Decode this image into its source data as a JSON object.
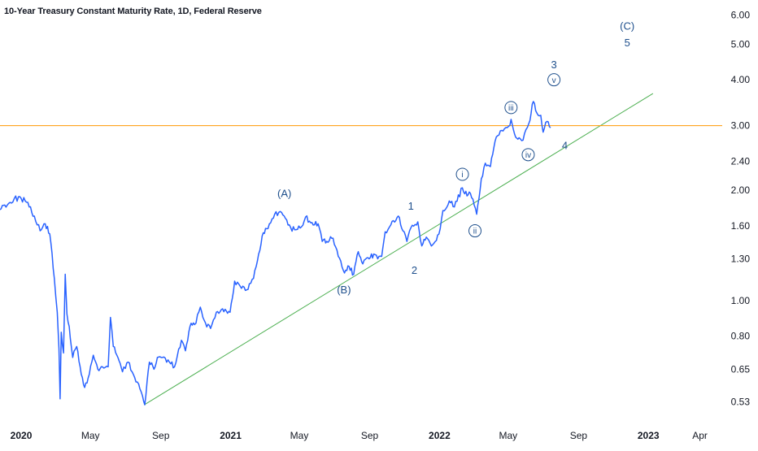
{
  "chart_data": {
    "type": "line",
    "title": "10-Year Treasury Constant Maturity Rate, 1D, Federal Reserve",
    "y_scale": "log",
    "ylim": [
      0.47,
      6.6
    ],
    "y_ticks": [
      "6.00",
      "5.00",
      "4.00",
      "3.00",
      "2.40",
      "2.00",
      "1.60",
      "1.30",
      "1.00",
      "0.80",
      "0.65",
      "0.53"
    ],
    "x_ticks": [
      {
        "date": "2020-01-01",
        "label": "2020",
        "bold": true
      },
      {
        "date": "2020-05-01",
        "label": "May",
        "bold": false
      },
      {
        "date": "2020-09-01",
        "label": "Sep",
        "bold": false
      },
      {
        "date": "2021-01-01",
        "label": "2021",
        "bold": true
      },
      {
        "date": "2021-05-01",
        "label": "May",
        "bold": false
      },
      {
        "date": "2021-09-01",
        "label": "Sep",
        "bold": false
      },
      {
        "date": "2022-01-01",
        "label": "2022",
        "bold": true
      },
      {
        "date": "2022-05-01",
        "label": "May",
        "bold": false
      },
      {
        "date": "2022-09-01",
        "label": "Sep",
        "bold": false
      },
      {
        "date": "2023-01-01",
        "label": "2023",
        "bold": true
      },
      {
        "date": "2023-04-01",
        "label": "Apr",
        "bold": false
      }
    ],
    "xlim": [
      "2019-11-25",
      "2023-05-10"
    ],
    "series": [
      {
        "color": "#2962ff",
        "points": [
          [
            "2019-11-25",
            1.77
          ],
          [
            "2019-12-01",
            1.82
          ],
          [
            "2019-12-10",
            1.84
          ],
          [
            "2019-12-20",
            1.9
          ],
          [
            "2020-01-01",
            1.9
          ],
          [
            "2020-01-08",
            1.87
          ],
          [
            "2020-01-15",
            1.8
          ],
          [
            "2020-01-24",
            1.7
          ],
          [
            "2020-02-03",
            1.55
          ],
          [
            "2020-02-12",
            1.62
          ],
          [
            "2020-02-20",
            1.52
          ],
          [
            "2020-02-28",
            1.15
          ],
          [
            "2020-03-04",
            0.93
          ],
          [
            "2020-03-07",
            0.74
          ],
          [
            "2020-03-09",
            0.54
          ],
          [
            "2020-03-11",
            0.82
          ],
          [
            "2020-03-15",
            0.72
          ],
          [
            "2020-03-18",
            1.18
          ],
          [
            "2020-03-21",
            0.92
          ],
          [
            "2020-03-25",
            0.85
          ],
          [
            "2020-03-31",
            0.7
          ],
          [
            "2020-04-07",
            0.75
          ],
          [
            "2020-04-15",
            0.63
          ],
          [
            "2020-04-21",
            0.58
          ],
          [
            "2020-04-29",
            0.63
          ],
          [
            "2020-05-06",
            0.71
          ],
          [
            "2020-05-14",
            0.65
          ],
          [
            "2020-05-22",
            0.66
          ],
          [
            "2020-06-01",
            0.66
          ],
          [
            "2020-06-05",
            0.9
          ],
          [
            "2020-06-10",
            0.75
          ],
          [
            "2020-06-18",
            0.7
          ],
          [
            "2020-06-26",
            0.64
          ],
          [
            "2020-07-06",
            0.68
          ],
          [
            "2020-07-15",
            0.63
          ],
          [
            "2020-07-22",
            0.6
          ],
          [
            "2020-07-31",
            0.55
          ],
          [
            "2020-08-04",
            0.52
          ],
          [
            "2020-08-12",
            0.68
          ],
          [
            "2020-08-20",
            0.65
          ],
          [
            "2020-08-26",
            0.7
          ],
          [
            "2020-09-04",
            0.7
          ],
          [
            "2020-09-16",
            0.68
          ],
          [
            "2020-09-25",
            0.66
          ],
          [
            "2020-10-07",
            0.78
          ],
          [
            "2020-10-14",
            0.73
          ],
          [
            "2020-10-22",
            0.85
          ],
          [
            "2020-10-30",
            0.86
          ],
          [
            "2020-11-09",
            0.96
          ],
          [
            "2020-11-18",
            0.87
          ],
          [
            "2020-11-27",
            0.84
          ],
          [
            "2020-12-07",
            0.93
          ],
          [
            "2020-12-18",
            0.95
          ],
          [
            "2020-12-31",
            0.93
          ],
          [
            "2021-01-08",
            1.13
          ],
          [
            "2021-01-20",
            1.08
          ],
          [
            "2021-01-29",
            1.07
          ],
          [
            "2021-02-10",
            1.15
          ],
          [
            "2021-02-19",
            1.34
          ],
          [
            "2021-02-25",
            1.5
          ],
          [
            "2021-03-05",
            1.57
          ],
          [
            "2021-03-12",
            1.63
          ],
          [
            "2021-03-19",
            1.72
          ],
          [
            "2021-03-31",
            1.74
          ],
          [
            "2021-04-09",
            1.66
          ],
          [
            "2021-04-16",
            1.58
          ],
          [
            "2021-04-23",
            1.56
          ],
          [
            "2021-05-05",
            1.59
          ],
          [
            "2021-05-12",
            1.69
          ],
          [
            "2021-05-21",
            1.63
          ],
          [
            "2021-06-03",
            1.62
          ],
          [
            "2021-06-10",
            1.45
          ],
          [
            "2021-06-18",
            1.45
          ],
          [
            "2021-06-29",
            1.48
          ],
          [
            "2021-07-08",
            1.32
          ],
          [
            "2021-07-19",
            1.19
          ],
          [
            "2021-07-27",
            1.24
          ],
          [
            "2021-08-04",
            1.18
          ],
          [
            "2021-08-12",
            1.36
          ],
          [
            "2021-08-20",
            1.26
          ],
          [
            "2021-08-31",
            1.3
          ],
          [
            "2021-09-08",
            1.34
          ],
          [
            "2021-09-15",
            1.3
          ],
          [
            "2021-09-22",
            1.32
          ],
          [
            "2021-09-28",
            1.54
          ],
          [
            "2021-10-08",
            1.61
          ],
          [
            "2021-10-21",
            1.7
          ],
          [
            "2021-10-29",
            1.55
          ],
          [
            "2021-11-05",
            1.45
          ],
          [
            "2021-11-12",
            1.58
          ],
          [
            "2021-11-24",
            1.64
          ],
          [
            "2021-12-01",
            1.41
          ],
          [
            "2021-12-09",
            1.49
          ],
          [
            "2021-12-20",
            1.42
          ],
          [
            "2021-12-31",
            1.52
          ],
          [
            "2022-01-07",
            1.76
          ],
          [
            "2022-01-18",
            1.87
          ],
          [
            "2022-01-27",
            1.8
          ],
          [
            "2022-02-10",
            2.03
          ],
          [
            "2022-02-18",
            1.93
          ],
          [
            "2022-02-24",
            1.96
          ],
          [
            "2022-03-07",
            1.72
          ],
          [
            "2022-03-15",
            2.15
          ],
          [
            "2022-03-22",
            2.37
          ],
          [
            "2022-03-31",
            2.32
          ],
          [
            "2022-04-08",
            2.72
          ],
          [
            "2022-04-15",
            2.83
          ],
          [
            "2022-04-22",
            2.9
          ],
          [
            "2022-05-02",
            2.99
          ],
          [
            "2022-05-06",
            3.12
          ],
          [
            "2022-05-12",
            2.85
          ],
          [
            "2022-05-20",
            2.78
          ],
          [
            "2022-05-27",
            2.74
          ],
          [
            "2022-06-06",
            3.04
          ],
          [
            "2022-06-14",
            3.49
          ],
          [
            "2022-06-20",
            3.25
          ],
          [
            "2022-06-27",
            3.2
          ],
          [
            "2022-07-01",
            2.88
          ],
          [
            "2022-07-08",
            3.08
          ],
          [
            "2022-07-14",
            2.96
          ]
        ]
      }
    ],
    "horizontal_lines": [
      {
        "y": 3.0,
        "color": "#ff9800"
      }
    ],
    "trendlines": [
      {
        "from": [
          "2020-08-03",
          0.52
        ],
        "to": [
          "2023-01-09",
          3.67
        ],
        "color": "#4caf50"
      }
    ],
    "annotations": [
      {
        "text": "(C)",
        "date": "2022-11-25",
        "y": 5.6,
        "circled": false
      },
      {
        "text": "5",
        "date": "2022-11-25",
        "y": 5.05,
        "circled": false
      },
      {
        "text": "3",
        "date": "2022-07-20",
        "y": 4.4,
        "circled": false
      },
      {
        "text": "v",
        "date": "2022-07-20",
        "y": 4.0,
        "circled": true
      },
      {
        "text": "iii",
        "date": "2022-05-06",
        "y": 3.36,
        "circled": true
      },
      {
        "text": "4",
        "date": "2022-08-08",
        "y": 2.65,
        "circled": false
      },
      {
        "text": "iv",
        "date": "2022-06-05",
        "y": 2.5,
        "circled": true
      },
      {
        "text": "i",
        "date": "2022-02-10",
        "y": 2.21,
        "circled": true
      },
      {
        "text": "(A)",
        "date": "2021-04-05",
        "y": 1.96,
        "circled": false
      },
      {
        "text": "1",
        "date": "2021-11-12",
        "y": 1.81,
        "circled": false
      },
      {
        "text": "ii",
        "date": "2022-03-04",
        "y": 1.55,
        "circled": true
      },
      {
        "text": "2",
        "date": "2021-11-18",
        "y": 1.21,
        "circled": false
      },
      {
        "text": "(B)",
        "date": "2021-07-18",
        "y": 1.07,
        "circled": false
      }
    ]
  }
}
